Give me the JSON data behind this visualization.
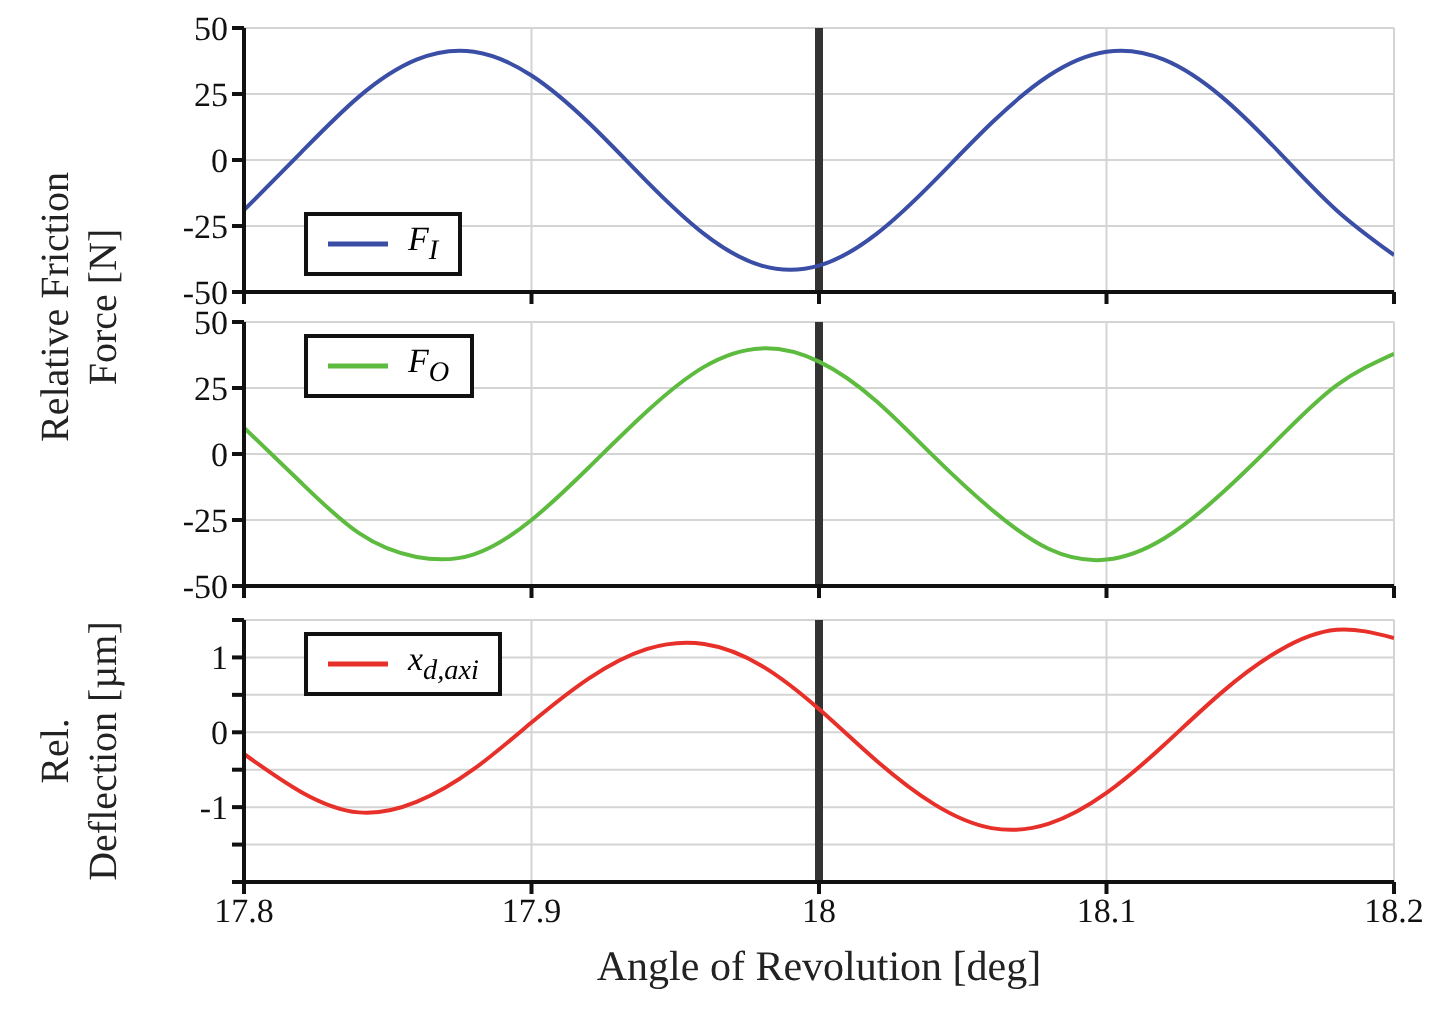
{
  "chart_data": [
    {
      "type": "line",
      "ylabel": "Relative Friction Force [N]",
      "x": [
        17.8,
        17.82,
        17.84,
        17.86,
        17.88,
        17.9,
        17.92,
        17.94,
        17.96,
        17.98,
        18.0,
        18.02,
        18.04,
        18.06,
        18.08,
        18.1,
        18.12,
        18.14,
        18.16,
        18.18,
        18.2
      ],
      "series": [
        {
          "name": "F$_{I}$",
          "color": "#3a4ea6",
          "values": [
            -19,
            3,
            24,
            38,
            41,
            32,
            14,
            -8,
            -28,
            -40,
            -40,
            -28,
            -8,
            14,
            32,
            41,
            38,
            24,
            3,
            -19,
            -36
          ]
        }
      ],
      "xlim": [
        17.8,
        18.2
      ],
      "xticks": [
        17.8,
        17.9,
        18,
        18.1,
        18.2
      ],
      "ylim": [
        -50,
        50
      ],
      "yticks": [
        -50,
        -25,
        0,
        25,
        50
      ],
      "tick_labels": "y",
      "grid": true,
      "legend": "bottom left",
      "marker": "none",
      "line_style": "solid",
      "ref_lines": [
        {
          "axis": "x",
          "value": 18,
          "color": "#333333"
        }
      ]
    },
    {
      "type": "line",
      "x": [
        17.8,
        17.82,
        17.84,
        17.86,
        17.88,
        17.9,
        17.92,
        17.94,
        17.96,
        17.98,
        18.0,
        18.02,
        18.04,
        18.06,
        18.08,
        18.1,
        18.12,
        18.14,
        18.16,
        18.18,
        18.2
      ],
      "series": [
        {
          "name": "F$_{O}$",
          "color": "#5dbb3f",
          "values": [
            10,
            -11,
            -30,
            -39,
            -38,
            -25,
            -5,
            16,
            33,
            40,
            35,
            20,
            -1,
            -21,
            -36,
            -40,
            -32,
            -15,
            6,
            26,
            38
          ]
        }
      ],
      "xlim": [
        17.8,
        18.2
      ],
      "xticks": [
        17.8,
        17.9,
        18,
        18.1,
        18.2
      ],
      "ylim": [
        -50,
        50
      ],
      "yticks": [
        -50,
        -25,
        0,
        25,
        50
      ],
      "tick_labels": "y",
      "grid": true,
      "legend": "top left",
      "marker": "none",
      "line_style": "solid",
      "ref_lines": [
        {
          "axis": "x",
          "value": 18,
          "color": "#333333"
        }
      ]
    },
    {
      "type": "line",
      "xlabel": "Angle of Revolution [deg]",
      "ylabel": "Rel. Deflection [µm]",
      "x": [
        17.8,
        17.82,
        17.84,
        17.86,
        17.88,
        17.9,
        17.92,
        17.94,
        17.96,
        17.98,
        18.0,
        18.02,
        18.04,
        18.06,
        18.08,
        18.1,
        18.12,
        18.14,
        18.16,
        18.18,
        18.2
      ],
      "series": [
        {
          "name": "x$_{d,axi}$",
          "color": "#e8302a",
          "values": [
            -0.29,
            -0.8,
            -1.07,
            -0.93,
            -0.49,
            0.13,
            0.72,
            1.11,
            1.18,
            0.89,
            0.31,
            -0.38,
            -0.96,
            -1.28,
            -1.22,
            -0.81,
            -0.17,
            0.53,
            1.09,
            1.37,
            1.26
          ]
        }
      ],
      "xlim": [
        17.8,
        18.2
      ],
      "xticks": [
        17.8,
        17.9,
        18,
        18.1,
        18.2
      ],
      "ylim": [
        -2,
        1.5
      ],
      "yticks": [
        {
          "value": -2,
          "label": null
        },
        {
          "value": -1.5,
          "label": null
        },
        -1,
        {
          "value": -0.5,
          "label": null
        },
        0,
        {
          "value": 0.5,
          "label": null
        },
        1,
        {
          "value": 1.5,
          "label": null
        }
      ],
      "grid": true,
      "legend": "top left",
      "marker": "none",
      "line_style": "solid",
      "ref_lines": [
        {
          "axis": "x",
          "value": 18,
          "color": "#333333"
        }
      ]
    }
  ]
}
